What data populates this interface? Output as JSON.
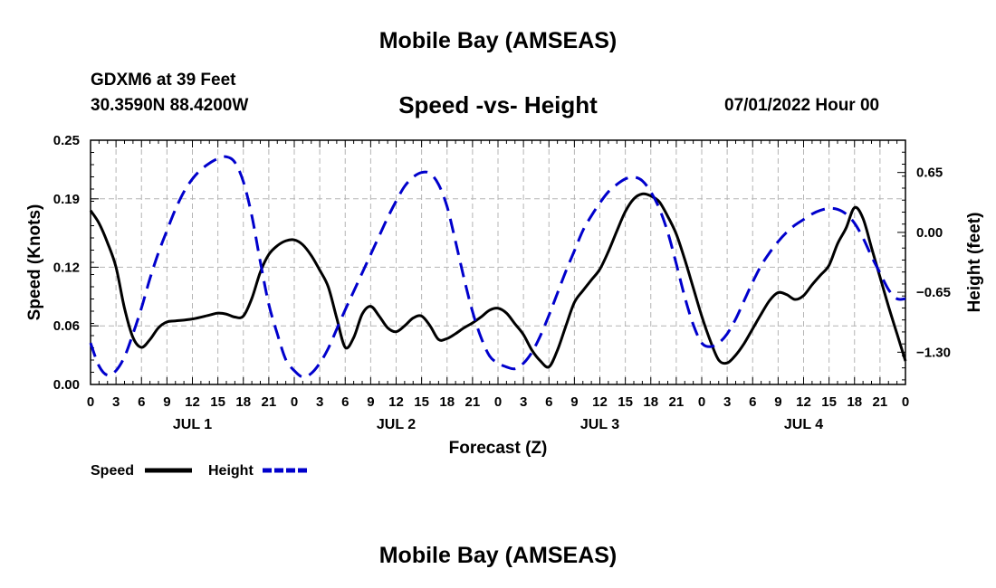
{
  "page": {
    "title": "Mobile Bay (AMSEAS)",
    "bottom_title": "Mobile Bay (AMSEAS)",
    "station": "GDXM6 at 39 Feet",
    "coords": "30.3590N  88.4200W",
    "datetime": "07/01/2022 Hour 00"
  },
  "chart_data": {
    "type": "line",
    "title": "Speed -vs- Height",
    "xlabel": "Forecast (Z)",
    "ylabel": "Speed (Knots)",
    "y2label": "Height (feet)",
    "xlim": [
      0,
      96
    ],
    "ylim": [
      0,
      0.25
    ],
    "y2lim": [
      -1.65,
      1.0
    ],
    "x_ticks": [
      0,
      3,
      6,
      9,
      12,
      15,
      18,
      21,
      24,
      27,
      30,
      33,
      36,
      39,
      42,
      45,
      48,
      51,
      54,
      57,
      60,
      63,
      66,
      69,
      72,
      75,
      78,
      81,
      84,
      87,
      90,
      93,
      96
    ],
    "x_tick_labels": [
      "0",
      "3",
      "6",
      "9",
      "12",
      "15",
      "18",
      "21",
      "0",
      "3",
      "6",
      "9",
      "12",
      "15",
      "18",
      "21",
      "0",
      "3",
      "6",
      "9",
      "12",
      "15",
      "18",
      "21",
      "0",
      "3",
      "6",
      "9",
      "12",
      "15",
      "18",
      "21",
      "0"
    ],
    "day_labels": [
      {
        "x": 12,
        "label": "JUL 1"
      },
      {
        "x": 36,
        "label": "JUL 2"
      },
      {
        "x": 60,
        "label": "JUL 3"
      },
      {
        "x": 84,
        "label": "JUL 4"
      }
    ],
    "y_ticks": [
      0.0,
      0.06,
      0.12,
      0.19,
      0.25
    ],
    "y_tick_labels": [
      "0.00",
      "0.06",
      "0.12",
      "0.19",
      "0.25"
    ],
    "y2_ticks": [
      0.65,
      0.0,
      -0.65,
      -1.3
    ],
    "y2_tick_labels": [
      "0.65",
      "0.00",
      "−0.65",
      "−1.30"
    ],
    "grid": true,
    "legend_position": "bottom-left",
    "series": [
      {
        "name": "Speed",
        "axis": "left",
        "color": "#000000",
        "dash": "solid",
        "x": [
          0,
          1,
          2,
          3,
          4,
          5,
          6,
          7,
          8,
          9,
          10,
          12,
          14,
          15,
          16,
          17,
          18,
          19,
          20,
          21,
          22,
          23,
          24,
          25,
          26,
          27,
          28,
          29,
          30,
          31,
          32,
          33,
          34,
          35,
          36,
          37,
          38,
          39,
          40,
          41,
          42,
          43,
          44,
          45,
          46,
          47,
          48,
          49,
          50,
          51,
          52,
          53,
          54,
          55,
          56,
          57,
          58,
          59,
          60,
          61,
          62,
          63,
          64,
          65,
          66,
          67,
          68,
          69,
          70,
          71,
          72,
          73,
          74,
          75,
          76,
          77,
          78,
          79,
          80,
          81,
          82,
          83,
          84,
          85,
          86,
          87,
          88,
          89,
          90,
          91,
          92,
          93,
          94,
          95,
          96
        ],
        "values": [
          0.178,
          0.165,
          0.145,
          0.12,
          0.078,
          0.048,
          0.038,
          0.046,
          0.058,
          0.064,
          0.065,
          0.067,
          0.071,
          0.073,
          0.072,
          0.069,
          0.07,
          0.088,
          0.115,
          0.133,
          0.142,
          0.147,
          0.148,
          0.143,
          0.132,
          0.117,
          0.1,
          0.068,
          0.038,
          0.048,
          0.072,
          0.08,
          0.07,
          0.058,
          0.054,
          0.06,
          0.068,
          0.07,
          0.06,
          0.046,
          0.047,
          0.052,
          0.058,
          0.063,
          0.069,
          0.076,
          0.078,
          0.073,
          0.062,
          0.051,
          0.035,
          0.024,
          0.018,
          0.035,
          0.06,
          0.084,
          0.096,
          0.107,
          0.118,
          0.136,
          0.157,
          0.177,
          0.19,
          0.195,
          0.193,
          0.187,
          0.172,
          0.154,
          0.128,
          0.099,
          0.07,
          0.045,
          0.025,
          0.022,
          0.03,
          0.042,
          0.057,
          0.072,
          0.086,
          0.094,
          0.092,
          0.087,
          0.091,
          0.102,
          0.112,
          0.122,
          0.144,
          0.16,
          0.181,
          0.17,
          0.14,
          0.11,
          0.08,
          0.052,
          0.024
        ]
      },
      {
        "name": "Height",
        "axis": "right",
        "color": "#0000cc",
        "dash": "dashed",
        "x": [
          0,
          1,
          2,
          3,
          4,
          5,
          6,
          7,
          8,
          9,
          10,
          11,
          12,
          13,
          14,
          15,
          16,
          17,
          18,
          19,
          20,
          21,
          22,
          23,
          24,
          25,
          26,
          27,
          28,
          29,
          30,
          31,
          32,
          33,
          34,
          35,
          36,
          37,
          38,
          39,
          40,
          41,
          42,
          43,
          44,
          45,
          46,
          47,
          48,
          49,
          50,
          51,
          52,
          53,
          54,
          55,
          56,
          57,
          58,
          59,
          60,
          61,
          62,
          63,
          64,
          65,
          66,
          67,
          68,
          69,
          70,
          71,
          72,
          73,
          74,
          75,
          76,
          77,
          78,
          79,
          80,
          81,
          82,
          83,
          84,
          85,
          86,
          87,
          88,
          89,
          90,
          91,
          92,
          93,
          94,
          95,
          96
        ],
        "values": [
          -1.2,
          -1.45,
          -1.55,
          -1.5,
          -1.35,
          -1.1,
          -0.82,
          -0.5,
          -0.22,
          0.02,
          0.25,
          0.44,
          0.58,
          0.68,
          0.75,
          0.8,
          0.82,
          0.76,
          0.55,
          0.18,
          -0.32,
          -0.78,
          -1.1,
          -1.38,
          -1.5,
          -1.57,
          -1.53,
          -1.42,
          -1.26,
          -1.05,
          -0.84,
          -0.64,
          -0.44,
          -0.24,
          -0.04,
          0.16,
          0.34,
          0.5,
          0.6,
          0.65,
          0.64,
          0.52,
          0.28,
          -0.1,
          -0.5,
          -0.86,
          -1.14,
          -1.34,
          -1.42,
          -1.46,
          -1.48,
          -1.42,
          -1.3,
          -1.12,
          -0.9,
          -0.66,
          -0.42,
          -0.2,
          0.02,
          0.18,
          0.32,
          0.44,
          0.52,
          0.58,
          0.6,
          0.56,
          0.44,
          0.26,
          0.0,
          -0.34,
          -0.7,
          -1.0,
          -1.2,
          -1.24,
          -1.2,
          -1.1,
          -0.94,
          -0.74,
          -0.54,
          -0.36,
          -0.22,
          -0.1,
          0.0,
          0.08,
          0.14,
          0.2,
          0.24,
          0.26,
          0.25,
          0.2,
          0.1,
          -0.06,
          -0.26,
          -0.44,
          -0.62,
          -0.72,
          -0.72
        ]
      }
    ]
  }
}
